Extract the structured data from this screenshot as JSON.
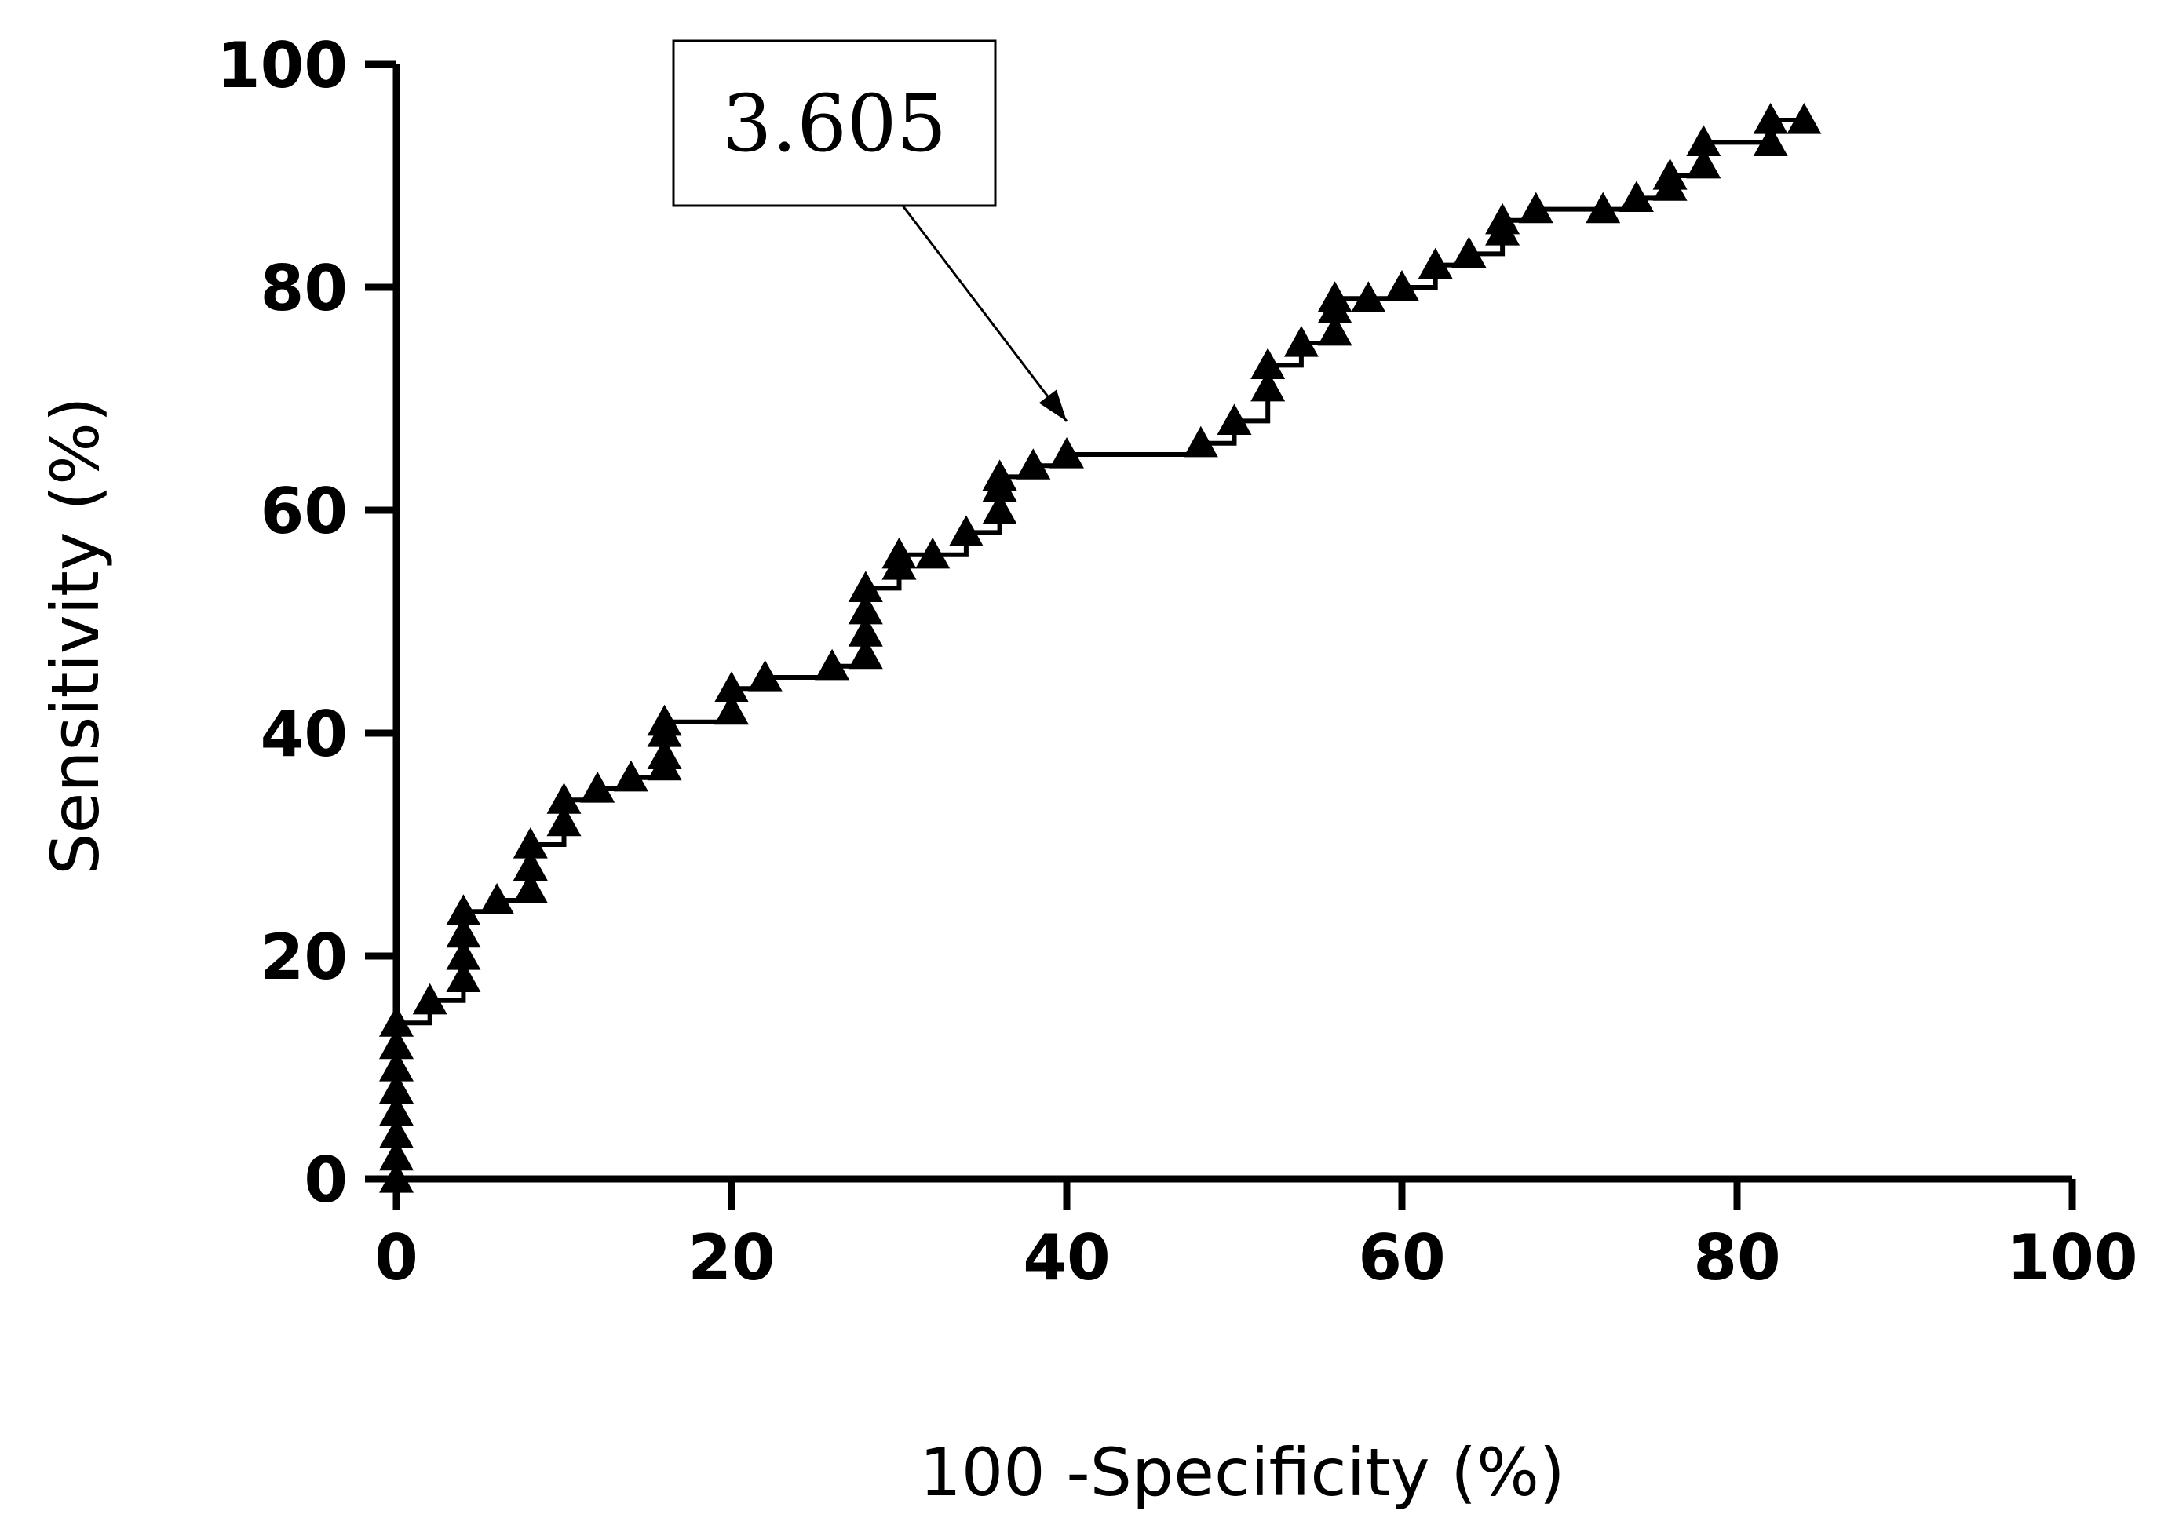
{
  "chart_data": {
    "type": "line",
    "xlabel": "100 -Specificity (%)",
    "ylabel": "Sensitivity (%)",
    "xlim": [
      0,
      100
    ],
    "ylim": [
      0,
      100
    ],
    "xticks": [
      "0",
      "20",
      "40",
      "60",
      "80",
      "100"
    ],
    "yticks": [
      "0",
      "20",
      "40",
      "60",
      "80",
      "100"
    ],
    "marker": "triangle",
    "line_style": "step",
    "annotation": {
      "text": "3.605",
      "x": 40,
      "y": 66
    },
    "series": [
      {
        "x": [
          0,
          0,
          0,
          0,
          0,
          0,
          0,
          0,
          2,
          4,
          4,
          4,
          4,
          6,
          8,
          8,
          8,
          10,
          10,
          12,
          14,
          16,
          16,
          16,
          16,
          20,
          20,
          22,
          26,
          28,
          28,
          28,
          28,
          30,
          30,
          32,
          34,
          36,
          36,
          36,
          38,
          40,
          48,
          50,
          52,
          52,
          54,
          56,
          56,
          56,
          58,
          60,
          62,
          64,
          66,
          66,
          68,
          72,
          74,
          76,
          76,
          78,
          78,
          82,
          82,
          84
        ],
        "y": [
          0,
          2,
          4,
          6,
          8,
          10,
          12,
          14,
          16,
          18,
          20,
          22,
          24,
          25,
          26,
          28,
          30,
          32,
          34,
          35,
          36,
          37,
          38,
          40,
          41,
          42,
          44,
          45,
          46,
          47,
          49,
          51,
          53,
          55,
          56,
          56,
          58,
          60,
          62,
          63,
          64,
          65,
          66,
          68,
          71,
          73,
          75,
          76,
          78,
          79,
          79,
          80,
          82,
          83,
          85,
          86,
          87,
          87,
          88,
          89,
          90,
          91,
          93,
          93,
          95,
          95
        ]
      }
    ]
  }
}
